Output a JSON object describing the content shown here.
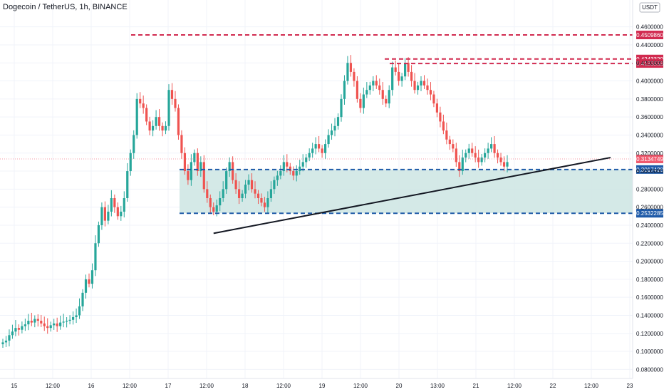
{
  "chart_data": {
    "type": "candlestick",
    "title": "Dogecoin / TetherUS, 1h, BINANCE",
    "currency": "USDT",
    "ylim": [
      0.07,
      0.48
    ],
    "y_ticks": [
      "0.4600000",
      "0.4400000",
      "0.4200000",
      "0.4000000",
      "0.3800000",
      "0.3600000",
      "0.3400000",
      "0.3200000",
      "0.3000000",
      "0.2800000",
      "0.2600000",
      "0.2400000",
      "0.2200000",
      "0.2000000",
      "0.1800000",
      "0.1600000",
      "0.1400000",
      "0.1200000",
      "0.1000000",
      "0.0800000"
    ],
    "x_ticks": [
      "15",
      "12:00",
      "16",
      "12:00",
      "17",
      "12:00",
      "18",
      "12:00",
      "19",
      "12:00",
      "20",
      "13:00",
      "21",
      "12:00",
      "22",
      "12:00",
      "23"
    ],
    "grid": true,
    "candle_samples": [
      0.11,
      0.112,
      0.118,
      0.122,
      0.126,
      0.124,
      0.128,
      0.13,
      0.134,
      0.132,
      0.136,
      0.134,
      0.131,
      0.128,
      0.126,
      0.129,
      0.131,
      0.128,
      0.132,
      0.133,
      0.134,
      0.135,
      0.138,
      0.14,
      0.15,
      0.165,
      0.18,
      0.175,
      0.19,
      0.22,
      0.24,
      0.26,
      0.245,
      0.255,
      0.27,
      0.26,
      0.25,
      0.255,
      0.27,
      0.3,
      0.32,
      0.34,
      0.38,
      0.375,
      0.37,
      0.355,
      0.345,
      0.35,
      0.36,
      0.35,
      0.345,
      0.35,
      0.39,
      0.38,
      0.37,
      0.34,
      0.32,
      0.3,
      0.29,
      0.31,
      0.32,
      0.3,
      0.31,
      0.28,
      0.27,
      0.26,
      0.255,
      0.262,
      0.27,
      0.28,
      0.3,
      0.31,
      0.29,
      0.28,
      0.27,
      0.275,
      0.285,
      0.29,
      0.28,
      0.275,
      0.27,
      0.265,
      0.26,
      0.27,
      0.28,
      0.29,
      0.295,
      0.3,
      0.31,
      0.305,
      0.3,
      0.295,
      0.3,
      0.305,
      0.31,
      0.315,
      0.32,
      0.325,
      0.33,
      0.325,
      0.32,
      0.33,
      0.34,
      0.345,
      0.35,
      0.36,
      0.38,
      0.4,
      0.42,
      0.41,
      0.4,
      0.38,
      0.37,
      0.385,
      0.39,
      0.395,
      0.4,
      0.395,
      0.39,
      0.38,
      0.375,
      0.39,
      0.415,
      0.41,
      0.4,
      0.405,
      0.42,
      0.41,
      0.4,
      0.39,
      0.395,
      0.4,
      0.395,
      0.39,
      0.385,
      0.375,
      0.365,
      0.355,
      0.345,
      0.335,
      0.33,
      0.325,
      0.31,
      0.3,
      0.315,
      0.32,
      0.325,
      0.32,
      0.315,
      0.31,
      0.315,
      0.32,
      0.325,
      0.33,
      0.32,
      0.315,
      0.31,
      0.305,
      0.31
    ],
    "horizontal_levels": [
      {
        "label": "0.4509860",
        "value": 0.450986,
        "color": "#d12a4f",
        "style": "dashed"
      },
      {
        "label": "0.4243329",
        "value": 0.4243329,
        "color": "#d12a4f",
        "style": "dashed"
      },
      {
        "label": "0.4193558",
        "value": 0.4193558,
        "color": "#d12a4f",
        "style": "dashed"
      },
      {
        "label": "0.3134749",
        "value": 0.3134749,
        "color": "#f05a6e",
        "style": "last-price"
      },
      {
        "label": "0.3017428",
        "value": 0.3017428,
        "color": "#1e5aa8",
        "style": "dashed"
      },
      {
        "label": "0.2532285",
        "value": 0.2532285,
        "color": "#1e5aa8",
        "style": "dashed"
      }
    ],
    "zone": {
      "top": 0.3017428,
      "bottom": 0.2532285,
      "fill": "#cfe7e4"
    },
    "trendline": {
      "from": {
        "x_index": 66,
        "y": 0.231
      },
      "to": {
        "x_index": 190,
        "y": 0.315
      },
      "color": "#131722"
    },
    "colors": {
      "up": "#26a69a",
      "down": "#ef5350",
      "grid": "#f0f3fa",
      "axis_text": "#131722"
    }
  }
}
